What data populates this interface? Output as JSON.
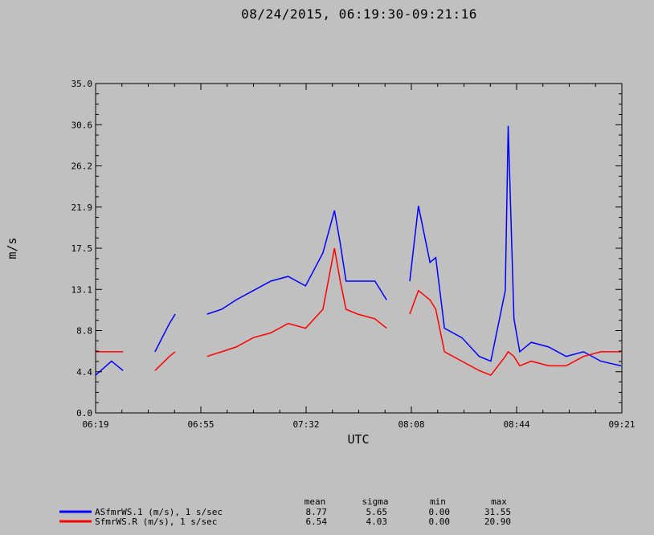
{
  "chart_data": {
    "type": "line",
    "title": "08/24/2015, 06:19:30-09:21:16",
    "xlabel": "UTC",
    "ylabel": "m/s",
    "ylim": [
      0.0,
      35.0
    ],
    "y_ticks": [
      "0.0",
      "4.4",
      "8.8",
      "13.1",
      "17.5",
      "21.9",
      "26.2",
      "30.6",
      "35.0"
    ],
    "x_ticks": [
      "06:19",
      "06:55",
      "07:32",
      "08:08",
      "08:44",
      "09:21"
    ],
    "xlim": [
      "06:19:30",
      "09:21:16"
    ],
    "grid": false,
    "legend_position": "bottom",
    "stats_headers": [
      "mean",
      "sigma",
      "min",
      "max"
    ],
    "series": [
      {
        "name": "ASfmrWS.1 (m/s), 1 s/sec",
        "color": "#0000ff",
        "stats": [
          "8.77",
          "5.65",
          "0.00",
          "31.55"
        ],
        "x": [
          "06:19:30",
          "06:25:00",
          "06:29:00",
          "06:31:00",
          "06:40:00",
          "06:45:00",
          "06:47:00",
          "06:49:00",
          "06:53:00",
          "06:58:00",
          "07:03:00",
          "07:08:00",
          "07:14:00",
          "07:20:00",
          "07:26:00",
          "07:32:00",
          "07:38:00",
          "07:42:00",
          "07:44:00",
          "07:46:00",
          "07:50:00",
          "07:56:00",
          "08:00:00",
          "08:04:00",
          "08:06:00",
          "08:08:00",
          "08:11:00",
          "08:15:00",
          "08:17:00",
          "08:20:00",
          "08:26:00",
          "08:32:00",
          "08:36:00",
          "08:41:00",
          "08:42:00",
          "08:44:00",
          "08:46:00",
          "08:50:00",
          "08:56:00",
          "09:02:00",
          "09:08:00",
          "09:14:00",
          "09:21:00"
        ],
        "y": [
          4.0,
          5.5,
          4.5,
          null,
          6.5,
          9.5,
          10.5,
          null,
          null,
          10.5,
          11.0,
          12.0,
          13.0,
          14.0,
          14.5,
          13.5,
          17.0,
          21.5,
          18.0,
          14.0,
          14.0,
          14.0,
          12.0,
          null,
          null,
          14.0,
          22.0,
          16.0,
          16.5,
          9.0,
          8.0,
          6.0,
          5.5,
          13.0,
          30.5,
          10.0,
          6.5,
          7.5,
          7.0,
          6.0,
          6.5,
          5.5,
          5.0
        ]
      },
      {
        "name": "SfmrWS.R (m/s), 1 s/sec",
        "color": "#ff0000",
        "stats": [
          "6.54",
          "4.03",
          "0.00",
          "20.90"
        ],
        "x": [
          "06:19:30",
          "06:25:00",
          "06:29:00",
          "06:31:00",
          "06:40:00",
          "06:45:00",
          "06:47:00",
          "06:49:00",
          "06:53:00",
          "06:58:00",
          "07:03:00",
          "07:08:00",
          "07:14:00",
          "07:20:00",
          "07:26:00",
          "07:32:00",
          "07:38:00",
          "07:42:00",
          "07:44:00",
          "07:46:00",
          "07:50:00",
          "07:56:00",
          "08:00:00",
          "08:04:00",
          "08:06:00",
          "08:08:00",
          "08:11:00",
          "08:15:00",
          "08:17:00",
          "08:20:00",
          "08:26:00",
          "08:32:00",
          "08:36:00",
          "08:41:00",
          "08:42:00",
          "08:44:00",
          "08:46:00",
          "08:50:00",
          "08:56:00",
          "09:02:00",
          "09:08:00",
          "09:14:00",
          "09:21:00"
        ],
        "y": [
          6.5,
          6.5,
          6.5,
          null,
          4.5,
          6.0,
          6.5,
          null,
          null,
          6.0,
          6.5,
          7.0,
          8.0,
          8.5,
          9.5,
          9.0,
          11.0,
          17.5,
          14.0,
          11.0,
          10.5,
          10.0,
          9.0,
          null,
          null,
          10.5,
          13.0,
          12.0,
          11.0,
          6.5,
          5.5,
          4.5,
          4.0,
          6.0,
          6.5,
          6.0,
          5.0,
          5.5,
          5.0,
          5.0,
          6.0,
          6.5,
          6.5
        ]
      }
    ]
  }
}
